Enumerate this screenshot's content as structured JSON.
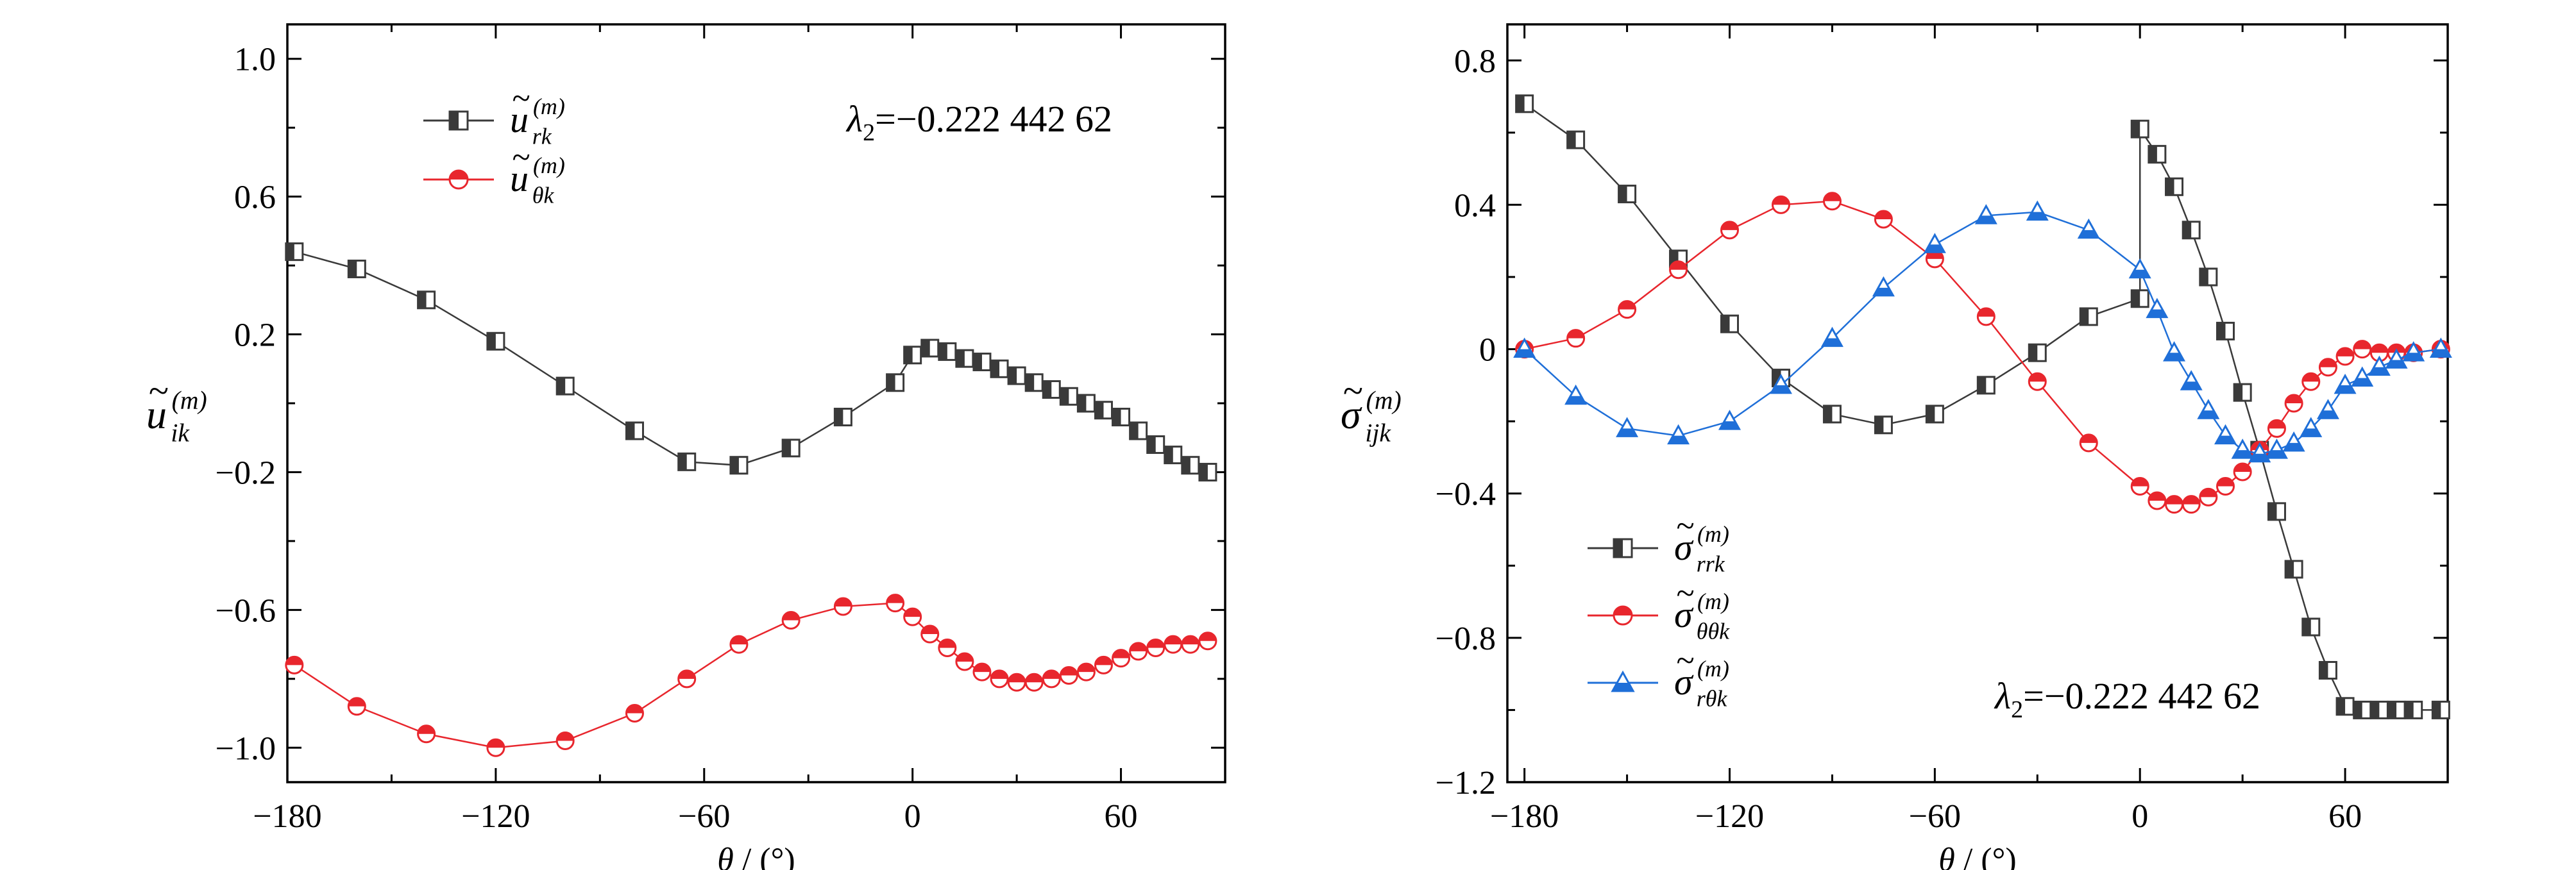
{
  "chart_data": [
    {
      "type": "line",
      "xlim": [
        -180,
        90
      ],
      "ylim": [
        -1.1,
        1.1
      ],
      "xticks": [
        -180,
        -120,
        -60,
        0,
        60
      ],
      "xtick_labels": [
        "−180",
        "−120",
        "−60",
        "0",
        "60"
      ],
      "yticks": [
        1.0,
        0.6,
        0.2,
        -0.2,
        -0.6,
        -1.0
      ],
      "ytick_labels": [
        "1.0",
        "0.6",
        "0.2",
        "−0.2",
        "−0.6",
        "−1.0"
      ],
      "xlabel": {
        "var": "θ",
        "unit": " / (°)"
      },
      "ylabel": {
        "base": "u",
        "sup": "(m)",
        "sub": "ik"
      },
      "annotation": {
        "lhs": "λ",
        "sub": "2",
        "rhs": "=−0.222 442 62"
      },
      "legend_position": "top-left",
      "grid": false,
      "series": [
        {
          "name": {
            "base": "u",
            "sup": "(m)",
            "sub": "rk"
          },
          "color": "#3a3a3a",
          "marker": "square-half",
          "x": [
            -178,
            -160,
            -140,
            -120,
            -100,
            -80,
            -65,
            -50,
            -35,
            -20,
            -5,
            0,
            5,
            10,
            15,
            20,
            25,
            30,
            35,
            40,
            45,
            50,
            55,
            60,
            65,
            70,
            75,
            80,
            85
          ],
          "y": [
            0.44,
            0.39,
            0.3,
            0.18,
            0.05,
            -0.08,
            -0.17,
            -0.18,
            -0.13,
            -0.04,
            0.06,
            0.14,
            0.16,
            0.15,
            0.13,
            0.12,
            0.1,
            0.08,
            0.06,
            0.04,
            0.02,
            0.0,
            -0.02,
            -0.04,
            -0.08,
            -0.12,
            -0.15,
            -0.18,
            -0.2
          ]
        },
        {
          "name": {
            "base": "u",
            "sup": "(m)",
            "sub": "θk"
          },
          "color": "#e8262d",
          "marker": "circle-half",
          "x": [
            -178,
            -160,
            -140,
            -120,
            -100,
            -80,
            -65,
            -50,
            -35,
            -20,
            -5,
            0,
            5,
            10,
            15,
            20,
            25,
            30,
            35,
            40,
            45,
            50,
            55,
            60,
            65,
            70,
            75,
            80,
            85
          ],
          "y": [
            -0.76,
            -0.88,
            -0.96,
            -1.0,
            -0.98,
            -0.9,
            -0.8,
            -0.7,
            -0.63,
            -0.59,
            -0.58,
            -0.62,
            -0.67,
            -0.71,
            -0.75,
            -0.78,
            -0.8,
            -0.81,
            -0.81,
            -0.8,
            -0.79,
            -0.78,
            -0.76,
            -0.74,
            -0.72,
            -0.71,
            -0.7,
            -0.7,
            -0.69
          ]
        }
      ]
    },
    {
      "type": "line",
      "xlim": [
        -185,
        90
      ],
      "ylim": [
        -1.2,
        0.9
      ],
      "xticks": [
        -180,
        -120,
        -60,
        0,
        60
      ],
      "xtick_labels": [
        "−180",
        "−120",
        "−60",
        "0",
        "60"
      ],
      "yticks": [
        0.8,
        0.4,
        0,
        -0.4,
        -0.8,
        -1.2
      ],
      "ytick_labels": [
        "0.8",
        "0.4",
        "0",
        "−0.4",
        "−0.8",
        "−1.2"
      ],
      "xlabel": {
        "var": "θ",
        "unit": " / (°)"
      },
      "ylabel": {
        "base": "σ",
        "sup": "(m)",
        "sub": "ijk"
      },
      "annotation": {
        "lhs": "λ",
        "sub": "2",
        "rhs": "=−0.222 442 62"
      },
      "legend_position": "bottom-left",
      "grid": false,
      "series": [
        {
          "name": {
            "base": "σ",
            "sup": "(m)",
            "sub": "rrk"
          },
          "color": "#3a3a3a",
          "marker": "square-half",
          "x": [
            -180,
            -165,
            -150,
            -135,
            -120,
            -105,
            -90,
            -75,
            -60,
            -45,
            -30,
            -15,
            0,
            0,
            5,
            10,
            15,
            20,
            25,
            30,
            35,
            40,
            45,
            50,
            55,
            60,
            65,
            70,
            75,
            80,
            88
          ],
          "y": [
            0.68,
            0.58,
            0.43,
            0.25,
            0.07,
            -0.08,
            -0.18,
            -0.21,
            -0.18,
            -0.1,
            -0.01,
            0.09,
            0.14,
            0.61,
            0.54,
            0.45,
            0.33,
            0.2,
            0.05,
            -0.12,
            -0.28,
            -0.45,
            -0.61,
            -0.77,
            -0.89,
            -0.99,
            -1.0,
            -1.0,
            -1.0,
            -1.0,
            -1.0
          ]
        },
        {
          "name": {
            "base": "σ",
            "sup": "(m)",
            "sub": "θθk"
          },
          "color": "#e8262d",
          "marker": "circle-half",
          "x": [
            -180,
            -165,
            -150,
            -135,
            -120,
            -105,
            -90,
            -75,
            -60,
            -45,
            -30,
            -15,
            0,
            5,
            10,
            15,
            20,
            25,
            30,
            35,
            40,
            45,
            50,
            55,
            60,
            65,
            70,
            75,
            80,
            88
          ],
          "y": [
            0.0,
            0.03,
            0.11,
            0.22,
            0.33,
            0.4,
            0.41,
            0.36,
            0.25,
            0.09,
            -0.09,
            -0.26,
            -0.38,
            -0.42,
            -0.43,
            -0.43,
            -0.41,
            -0.38,
            -0.34,
            -0.28,
            -0.22,
            -0.15,
            -0.09,
            -0.05,
            -0.02,
            0.0,
            -0.01,
            -0.01,
            -0.01,
            0.0
          ]
        },
        {
          "name": {
            "base": "σ",
            "sup": "(m)",
            "sub": "rθk"
          },
          "color": "#1f6fd8",
          "marker": "triangle-half",
          "x": [
            -180,
            -165,
            -150,
            -135,
            -120,
            -105,
            -90,
            -75,
            -60,
            -45,
            -30,
            -15,
            0,
            5,
            10,
            15,
            20,
            25,
            30,
            35,
            40,
            45,
            50,
            55,
            60,
            65,
            70,
            75,
            80,
            88
          ],
          "y": [
            0.0,
            -0.13,
            -0.22,
            -0.24,
            -0.2,
            -0.1,
            0.03,
            0.17,
            0.29,
            0.37,
            0.38,
            0.33,
            0.22,
            0.11,
            -0.01,
            -0.09,
            -0.17,
            -0.24,
            -0.28,
            -0.29,
            -0.28,
            -0.26,
            -0.22,
            -0.17,
            -0.1,
            -0.08,
            -0.05,
            -0.03,
            -0.01,
            0.0
          ]
        }
      ]
    }
  ]
}
